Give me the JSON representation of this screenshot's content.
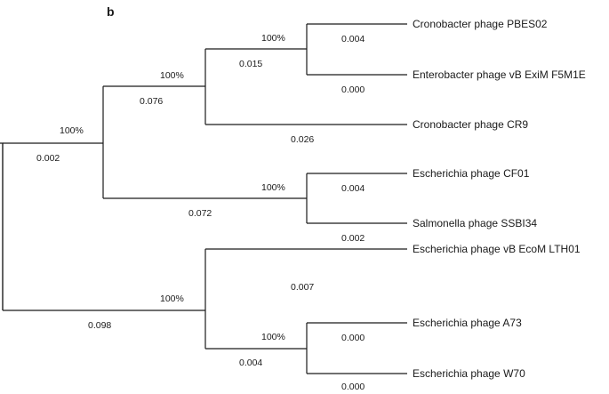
{
  "panel_label": "b",
  "leaves": {
    "pbes02": "Cronobacter phage PBES02",
    "f5m1e": "Enterobacter phage vB ExiM F5M1E",
    "cr9": "Cronobacter phage CR9",
    "cf01": "Escherichia phage CF01",
    "ssbi34": "Salmonella phage SSBI34",
    "lth01": "Escherichia phage vB EcoM LTH01",
    "a73": "Escherichia phage A73",
    "w70": "Escherichia phage W70"
  },
  "bootstrap": {
    "root": "100%",
    "upper_clade": "100%",
    "cronobacter_clade": "100%",
    "pbes02_f5m1e": "100%",
    "cf01_ssbi34": "100%",
    "lower_clade": "100%",
    "a73_w70": "100%"
  },
  "branch_lengths": {
    "root_upper": "0.002",
    "root_lower": "0.098",
    "upper_to_cronobacter": "0.076",
    "upper_to_cf01_ssbi34": "0.072",
    "cronobacter_to_pbes02_f5m1e": "0.015",
    "cronobacter_to_cr9": "0.026",
    "pbes02": "0.004",
    "f5m1e": "0.000",
    "cf01": "0.004",
    "ssbi34": "0.002",
    "lower_to_lth01": "0.007",
    "lower_to_a73_w70": "0.004",
    "a73": "0.000",
    "w70": "0.000"
  }
}
